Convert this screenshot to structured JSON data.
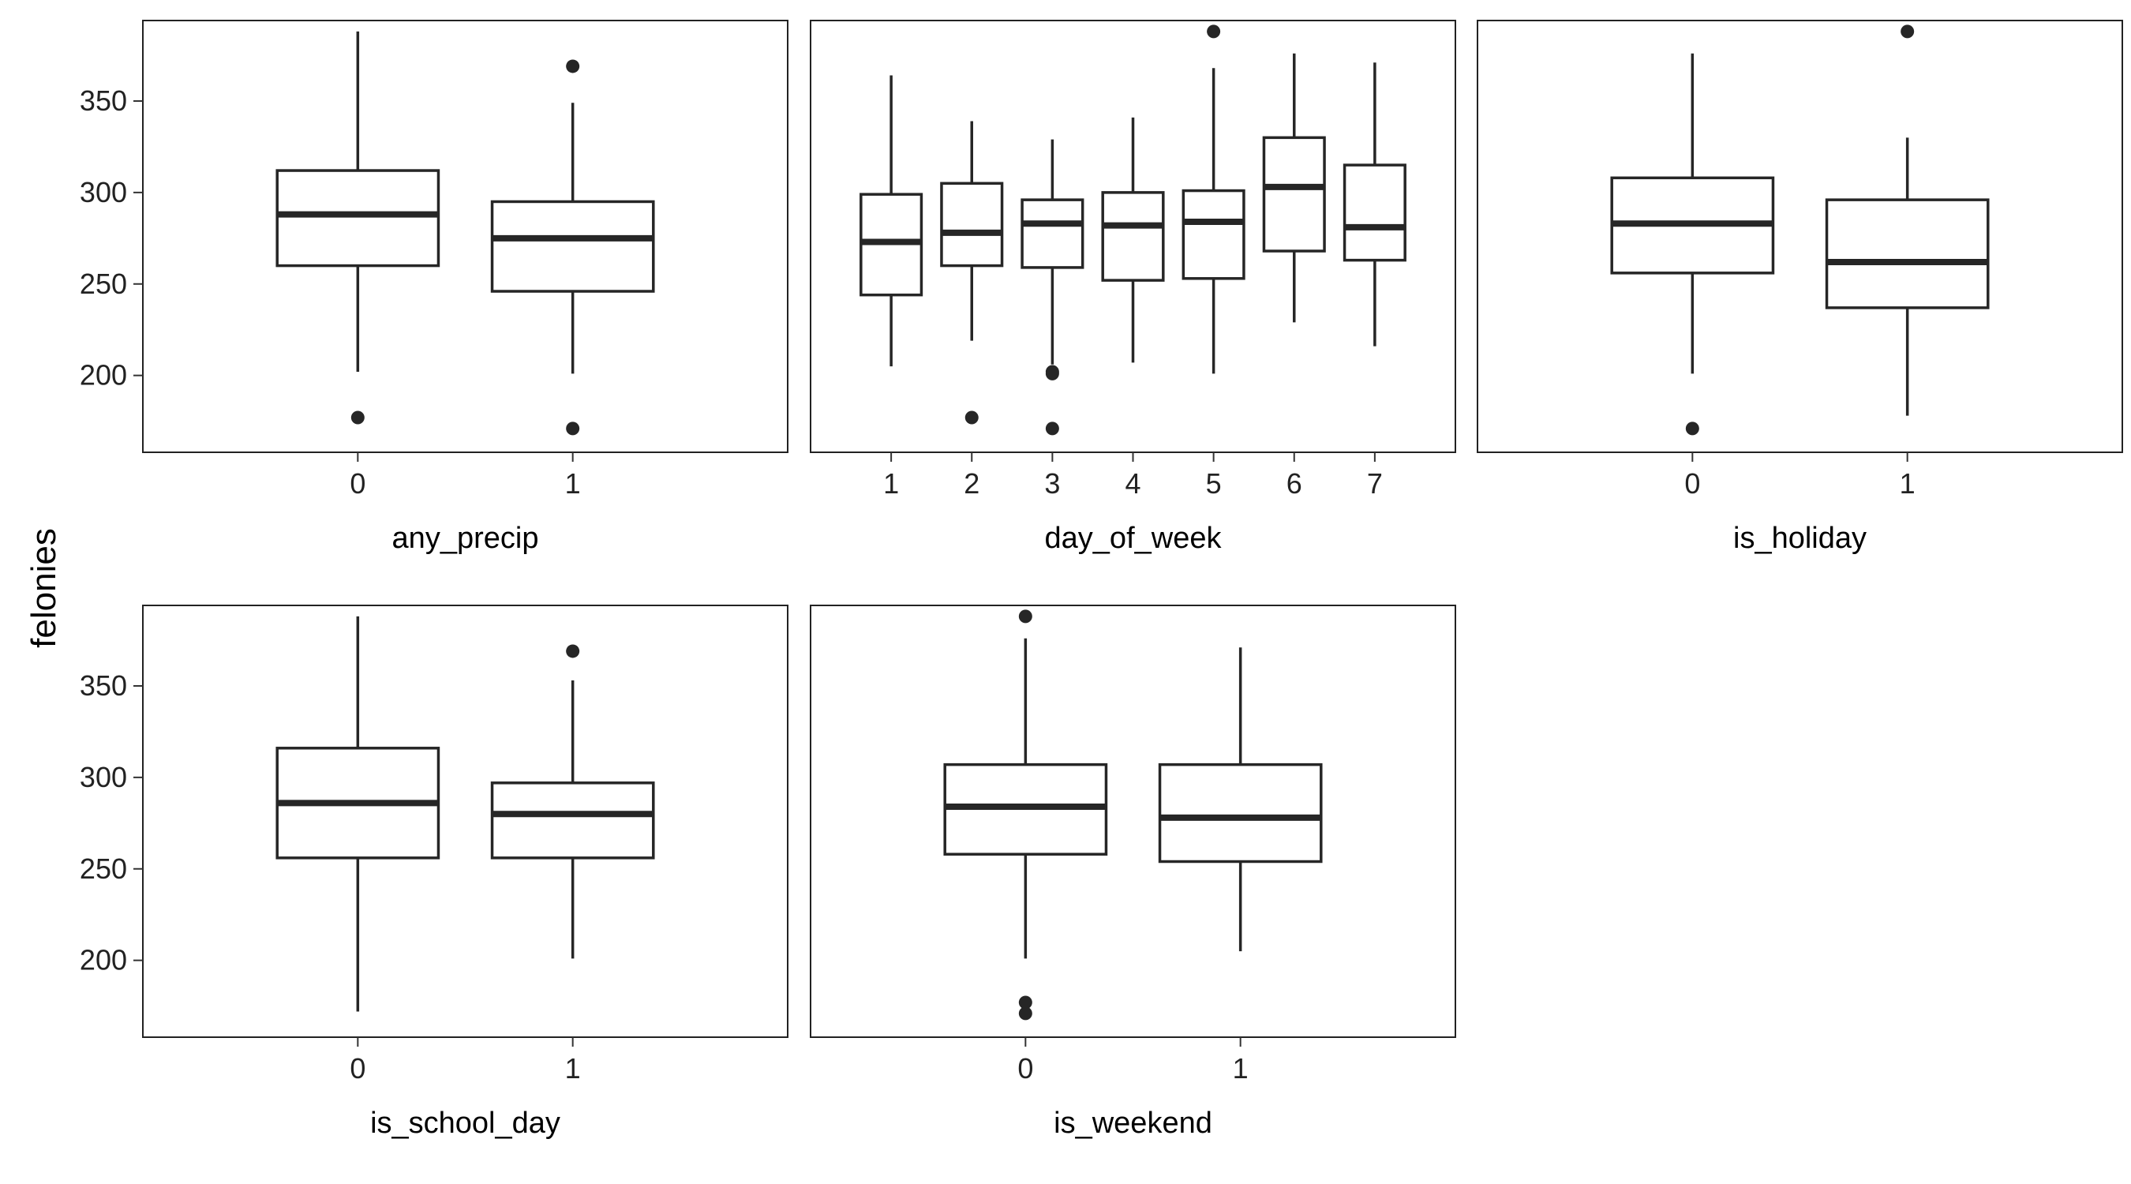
{
  "chart_data": {
    "type": "boxplot",
    "ylabel": "felonies",
    "ylim": [
      158,
      394
    ],
    "yticks": [
      200,
      250,
      300,
      350
    ],
    "panels": [
      {
        "xlabel": "any_precip",
        "categories": [
          "0",
          "1"
        ],
        "boxes": [
          {
            "low": 202,
            "q1": 260,
            "median": 288,
            "q3": 312,
            "high": 388,
            "outliers": [
              177
            ]
          },
          {
            "low": 201,
            "q1": 246,
            "median": 275,
            "q3": 295,
            "high": 349,
            "outliers": [
              369,
              171
            ]
          }
        ]
      },
      {
        "xlabel": "day_of_week",
        "categories": [
          "1",
          "2",
          "3",
          "4",
          "5",
          "6",
          "7"
        ],
        "boxes": [
          {
            "low": 205,
            "q1": 244,
            "median": 273,
            "q3": 299,
            "high": 364,
            "outliers": []
          },
          {
            "low": 219,
            "q1": 260,
            "median": 278,
            "q3": 305,
            "high": 339,
            "outliers": [
              177
            ]
          },
          {
            "low": 206,
            "q1": 259,
            "median": 283,
            "q3": 296,
            "high": 329,
            "outliers": [
              202,
              201,
              171
            ]
          },
          {
            "low": 207,
            "q1": 252,
            "median": 282,
            "q3": 300,
            "high": 341,
            "outliers": []
          },
          {
            "low": 201,
            "q1": 253,
            "median": 284,
            "q3": 301,
            "high": 368,
            "outliers": [
              388
            ]
          },
          {
            "low": 229,
            "q1": 268,
            "median": 303,
            "q3": 330,
            "high": 376,
            "outliers": []
          },
          {
            "low": 216,
            "q1": 263,
            "median": 281,
            "q3": 315,
            "high": 371,
            "outliers": []
          }
        ]
      },
      {
        "xlabel": "is_holiday",
        "categories": [
          "0",
          "1"
        ],
        "boxes": [
          {
            "low": 201,
            "q1": 256,
            "median": 283,
            "q3": 308,
            "high": 376,
            "outliers": [
              171
            ]
          },
          {
            "low": 178,
            "q1": 237,
            "median": 262,
            "q3": 296,
            "high": 330,
            "outliers": [
              388
            ]
          }
        ]
      },
      {
        "xlabel": "is_school_day",
        "categories": [
          "0",
          "1"
        ],
        "boxes": [
          {
            "low": 172,
            "q1": 256,
            "median": 286,
            "q3": 316,
            "high": 388,
            "outliers": []
          },
          {
            "low": 201,
            "q1": 256,
            "median": 280,
            "q3": 297,
            "high": 353,
            "outliers": [
              369
            ]
          }
        ]
      },
      {
        "xlabel": "is_weekend",
        "categories": [
          "0",
          "1"
        ],
        "boxes": [
          {
            "low": 201,
            "q1": 258,
            "median": 284,
            "q3": 307,
            "high": 376,
            "outliers": [
              388,
              177,
              171
            ]
          },
          {
            "low": 205,
            "q1": 254,
            "median": 278,
            "q3": 307,
            "high": 371,
            "outliers": []
          }
        ]
      }
    ]
  }
}
